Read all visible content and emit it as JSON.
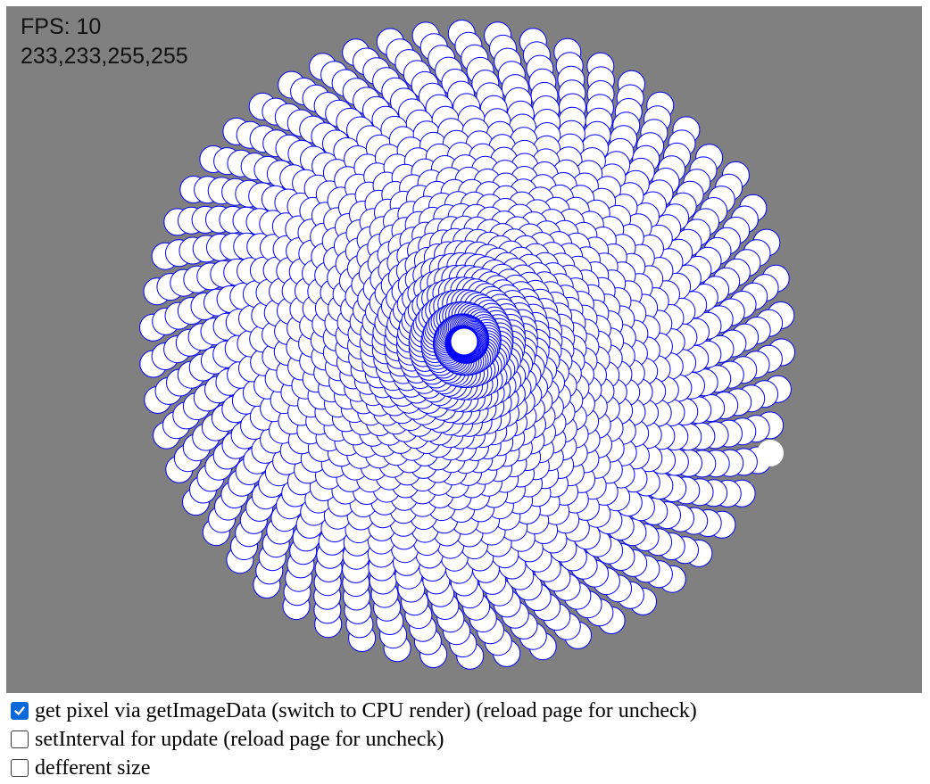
{
  "overlay": {
    "fps_text": "FPS: 10",
    "pixel_text": "233,233,255,255"
  },
  "visual": {
    "background_color": "#808080",
    "stroke_color": "#0000ff",
    "fill_color": "#ffffff",
    "checkbox_accent": "#0b68d8"
  },
  "options": [
    {
      "label": "get pixel via getImageData (switch to CPU render) (reload page for uncheck)",
      "checked": true
    },
    {
      "label": "setInterval for update (reload page for uncheck)",
      "checked": false
    },
    {
      "label": "defferent size",
      "checked": false
    }
  ]
}
